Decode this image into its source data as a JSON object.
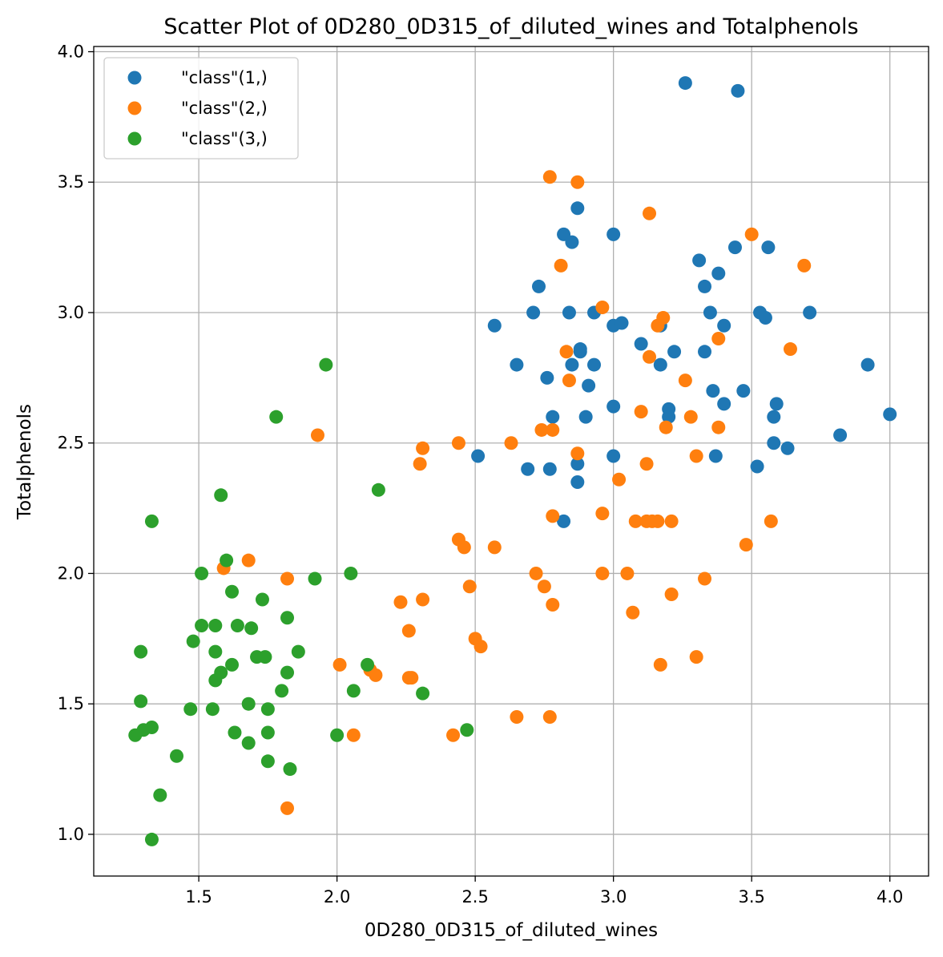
{
  "chart_data": {
    "type": "scatter",
    "title": "Scatter Plot of 0D280_0D315_of_diluted_wines and Totalphenols",
    "xlabel": "0D280_0D315_of_diluted_wines",
    "ylabel": "Totalphenols",
    "xlim": [
      1.12,
      4.14
    ],
    "ylim": [
      0.84,
      4.02
    ],
    "xticks": [
      1.5,
      2.0,
      2.5,
      3.0,
      3.5,
      4.0
    ],
    "xtick_labels": [
      "1.5",
      "2.0",
      "2.5",
      "3.0",
      "3.5",
      "4.0"
    ],
    "yticks": [
      1.0,
      1.5,
      2.0,
      2.5,
      3.0,
      3.5,
      4.0
    ],
    "ytick_labels": [
      "1.0",
      "1.5",
      "2.0",
      "2.5",
      "3.0",
      "3.5",
      "4.0"
    ],
    "grid": true,
    "legend_position": "top-left",
    "series": [
      {
        "name": "\"class\"(1,)",
        "color": "#1f77b4",
        "points": [
          [
            3.26,
            3.88
          ],
          [
            3.45,
            3.85
          ],
          [
            2.87,
            3.4
          ],
          [
            2.82,
            3.3
          ],
          [
            2.85,
            3.27
          ],
          [
            3.0,
            3.3
          ],
          [
            3.44,
            3.25
          ],
          [
            3.56,
            3.25
          ],
          [
            3.31,
            3.2
          ],
          [
            2.73,
            3.1
          ],
          [
            3.33,
            3.1
          ],
          [
            3.38,
            3.15
          ],
          [
            2.71,
            3.0
          ],
          [
            2.84,
            3.0
          ],
          [
            2.93,
            3.0
          ],
          [
            3.35,
            3.0
          ],
          [
            3.53,
            3.0
          ],
          [
            3.55,
            2.98
          ],
          [
            3.71,
            3.0
          ],
          [
            2.57,
            2.95
          ],
          [
            3.0,
            2.95
          ],
          [
            3.03,
            2.96
          ],
          [
            3.17,
            2.95
          ],
          [
            3.4,
            2.95
          ],
          [
            2.88,
            2.85
          ],
          [
            2.88,
            2.86
          ],
          [
            3.1,
            2.88
          ],
          [
            3.22,
            2.85
          ],
          [
            3.33,
            2.85
          ],
          [
            2.65,
            2.8
          ],
          [
            2.85,
            2.8
          ],
          [
            2.93,
            2.8
          ],
          [
            3.17,
            2.8
          ],
          [
            3.92,
            2.8
          ],
          [
            2.76,
            2.75
          ],
          [
            2.91,
            2.72
          ],
          [
            3.36,
            2.7
          ],
          [
            3.47,
            2.7
          ],
          [
            3.4,
            2.65
          ],
          [
            3.59,
            2.65
          ],
          [
            3.0,
            2.64
          ],
          [
            3.2,
            2.63
          ],
          [
            3.2,
            2.6
          ],
          [
            2.78,
            2.6
          ],
          [
            2.9,
            2.6
          ],
          [
            3.58,
            2.6
          ],
          [
            4.0,
            2.61
          ],
          [
            3.82,
            2.53
          ],
          [
            3.58,
            2.5
          ],
          [
            3.63,
            2.48
          ],
          [
            2.51,
            2.45
          ],
          [
            3.0,
            2.45
          ],
          [
            3.37,
            2.45
          ],
          [
            2.87,
            2.42
          ],
          [
            3.52,
            2.41
          ],
          [
            2.69,
            2.4
          ],
          [
            2.77,
            2.4
          ],
          [
            2.87,
            2.35
          ],
          [
            2.82,
            2.2
          ]
        ]
      },
      {
        "name": "\"class\"(2,)",
        "color": "#ff7f0e",
        "points": [
          [
            2.77,
            3.52
          ],
          [
            2.87,
            3.5
          ],
          [
            3.13,
            3.38
          ],
          [
            3.5,
            3.3
          ],
          [
            2.81,
            3.18
          ],
          [
            3.69,
            3.18
          ],
          [
            2.96,
            3.02
          ],
          [
            3.18,
            2.98
          ],
          [
            3.16,
            2.95
          ],
          [
            3.38,
            2.9
          ],
          [
            3.64,
            2.86
          ],
          [
            2.83,
            2.85
          ],
          [
            3.13,
            2.83
          ],
          [
            2.84,
            2.74
          ],
          [
            3.26,
            2.74
          ],
          [
            3.1,
            2.62
          ],
          [
            3.28,
            2.6
          ],
          [
            3.19,
            2.56
          ],
          [
            3.38,
            2.56
          ],
          [
            2.74,
            2.55
          ],
          [
            2.78,
            2.55
          ],
          [
            1.93,
            2.53
          ],
          [
            2.44,
            2.5
          ],
          [
            2.63,
            2.5
          ],
          [
            2.31,
            2.48
          ],
          [
            2.87,
            2.46
          ],
          [
            3.3,
            2.45
          ],
          [
            2.3,
            2.42
          ],
          [
            3.12,
            2.42
          ],
          [
            3.02,
            2.36
          ],
          [
            2.96,
            2.23
          ],
          [
            2.78,
            2.22
          ],
          [
            3.08,
            2.2
          ],
          [
            3.12,
            2.2
          ],
          [
            3.14,
            2.2
          ],
          [
            3.16,
            2.2
          ],
          [
            3.21,
            2.2
          ],
          [
            3.57,
            2.2
          ],
          [
            2.44,
            2.13
          ],
          [
            2.46,
            2.1
          ],
          [
            2.57,
            2.1
          ],
          [
            3.48,
            2.11
          ],
          [
            1.59,
            2.02
          ],
          [
            1.68,
            2.05
          ],
          [
            2.72,
            2.0
          ],
          [
            2.96,
            2.0
          ],
          [
            3.05,
            2.0
          ],
          [
            1.82,
            1.98
          ],
          [
            3.33,
            1.98
          ],
          [
            2.48,
            1.95
          ],
          [
            2.75,
            1.95
          ],
          [
            3.21,
            1.92
          ],
          [
            2.31,
            1.9
          ],
          [
            2.23,
            1.89
          ],
          [
            2.78,
            1.88
          ],
          [
            3.07,
            1.85
          ],
          [
            2.26,
            1.78
          ],
          [
            2.5,
            1.75
          ],
          [
            2.52,
            1.72
          ],
          [
            2.01,
            1.65
          ],
          [
            3.17,
            1.65
          ],
          [
            2.12,
            1.63
          ],
          [
            2.14,
            1.61
          ],
          [
            2.26,
            1.6
          ],
          [
            2.27,
            1.6
          ],
          [
            3.3,
            1.68
          ],
          [
            2.65,
            1.45
          ],
          [
            2.77,
            1.45
          ],
          [
            2.06,
            1.38
          ],
          [
            2.42,
            1.38
          ],
          [
            1.82,
            1.1
          ]
        ]
      },
      {
        "name": "\"class\"(3,)",
        "color": "#2ca02c",
        "points": [
          [
            1.96,
            2.8
          ],
          [
            1.78,
            2.6
          ],
          [
            2.15,
            2.32
          ],
          [
            1.58,
            2.3
          ],
          [
            1.33,
            2.2
          ],
          [
            1.6,
            2.05
          ],
          [
            1.51,
            2.0
          ],
          [
            1.92,
            1.98
          ],
          [
            2.05,
            2.0
          ],
          [
            1.62,
            1.93
          ],
          [
            1.73,
            1.9
          ],
          [
            1.82,
            1.83
          ],
          [
            1.51,
            1.8
          ],
          [
            1.56,
            1.8
          ],
          [
            1.64,
            1.8
          ],
          [
            1.69,
            1.79
          ],
          [
            1.48,
            1.74
          ],
          [
            1.29,
            1.7
          ],
          [
            1.56,
            1.7
          ],
          [
            1.71,
            1.68
          ],
          [
            1.74,
            1.68
          ],
          [
            1.86,
            1.7
          ],
          [
            1.62,
            1.65
          ],
          [
            1.58,
            1.62
          ],
          [
            1.82,
            1.62
          ],
          [
            2.11,
            1.65
          ],
          [
            1.56,
            1.59
          ],
          [
            1.8,
            1.55
          ],
          [
            2.06,
            1.55
          ],
          [
            2.31,
            1.54
          ],
          [
            1.29,
            1.51
          ],
          [
            1.68,
            1.5
          ],
          [
            1.47,
            1.48
          ],
          [
            1.55,
            1.48
          ],
          [
            1.75,
            1.48
          ],
          [
            1.3,
            1.4
          ],
          [
            1.33,
            1.41
          ],
          [
            1.27,
            1.38
          ],
          [
            1.63,
            1.39
          ],
          [
            1.75,
            1.39
          ],
          [
            2.0,
            1.38
          ],
          [
            2.47,
            1.4
          ],
          [
            1.68,
            1.35
          ],
          [
            1.42,
            1.3
          ],
          [
            1.75,
            1.28
          ],
          [
            1.83,
            1.25
          ],
          [
            1.36,
            1.15
          ],
          [
            1.33,
            0.98
          ]
        ]
      }
    ]
  }
}
